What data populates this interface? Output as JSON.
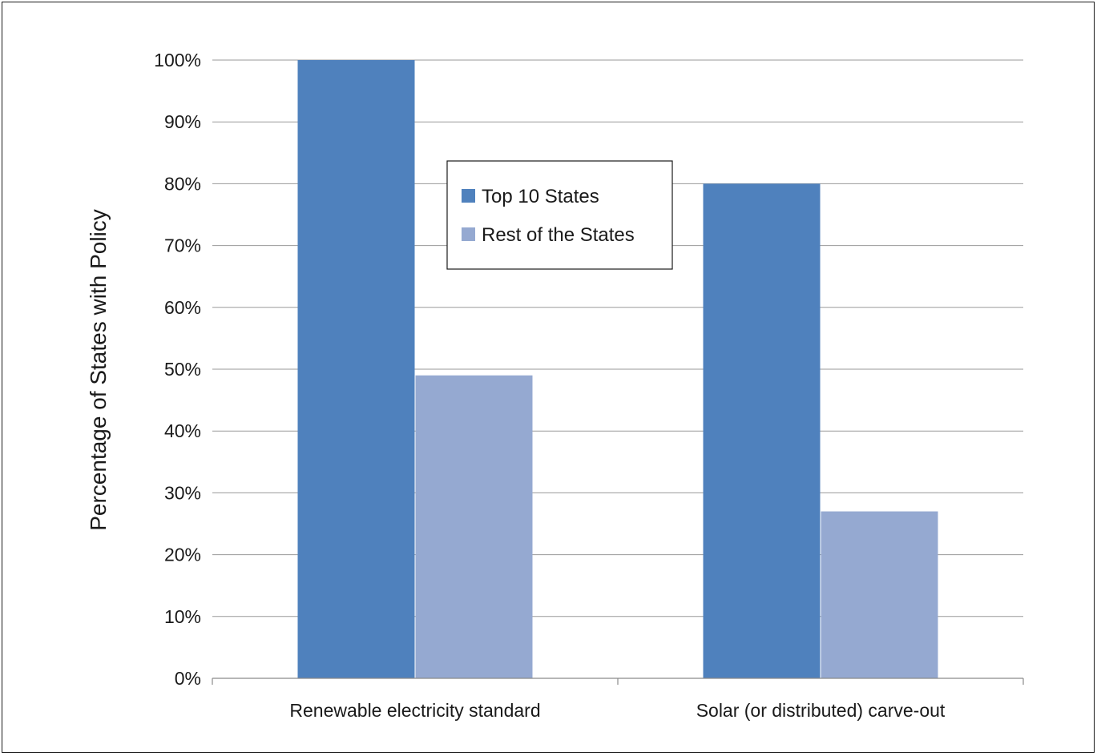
{
  "chart_data": {
    "type": "bar",
    "title": "",
    "xlabel": "",
    "ylabel": "Percentage of States with Policy",
    "categories": [
      "Renewable electricity standard",
      "Solar (or distributed) carve-out"
    ],
    "series": [
      {
        "name": "Top 10 States",
        "values": [
          100,
          80
        ],
        "color": "#4f81bd"
      },
      {
        "name": "Rest of the States",
        "values": [
          49,
          27
        ],
        "color": "#95a9d1"
      }
    ],
    "ylim": [
      0,
      100
    ],
    "yticks": [
      0,
      10,
      20,
      30,
      40,
      50,
      60,
      70,
      80,
      90,
      100
    ],
    "ytick_labels": [
      "0%",
      "10%",
      "20%",
      "30%",
      "40%",
      "50%",
      "60%",
      "70%",
      "80%",
      "90%",
      "100%"
    ],
    "grid": true,
    "legend_position": "top-center"
  }
}
